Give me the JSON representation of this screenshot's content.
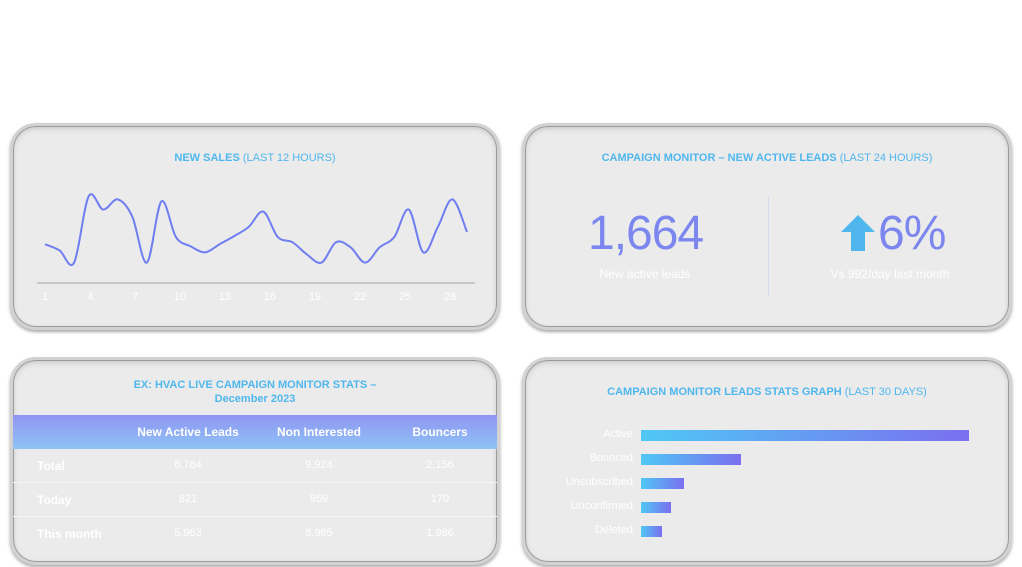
{
  "new_sales": {
    "title": "NEW SALES",
    "subtitle": "(LAST 12 HOURS)",
    "x_ticks": [
      "1",
      "4",
      "7",
      "10",
      "13",
      "16",
      "19",
      "22",
      "25",
      "28"
    ]
  },
  "campaign_leads": {
    "title": "CAMPAIGN MONITOR – NEW ACTIVE LEADS",
    "subtitle": "(LAST 24 HOURS)",
    "count": "1,664",
    "count_caption": "New active leads",
    "change": "6%",
    "change_caption": "Vs 992/day last month",
    "arrow_icon": "arrow-up-icon"
  },
  "hvac_stats": {
    "title_line1": "EX: HVAC LIVE CAMPAIGN MONITOR STATS –",
    "title_line2": "December 2023",
    "columns": [
      "New Active Leads",
      "Non Interested",
      "Bouncers"
    ],
    "rows": [
      {
        "label": "Total",
        "values": [
          "6,784",
          "9,924",
          "2,156"
        ]
      },
      {
        "label": "Today",
        "values": [
          "821",
          "959",
          "170"
        ]
      },
      {
        "label": "This month",
        "values": [
          "5,963",
          "8,965",
          "1,986"
        ]
      }
    ]
  },
  "leads_graph": {
    "title": "CAMPAIGN MONITOR LEADS STATS GRAPH",
    "subtitle": "(LAST 30 DAYS)"
  },
  "colors": {
    "accent": "#4fb7ee",
    "number": "#7c86ef",
    "line": "#6f7ef0"
  },
  "chart_data": [
    {
      "type": "line",
      "title": "NEW SALES (LAST 12 HOURS)",
      "x": [
        1,
        2,
        3,
        4,
        5,
        6,
        7,
        8,
        9,
        10,
        11,
        12,
        13,
        14,
        15,
        16,
        17,
        18,
        19,
        20,
        21,
        22,
        23,
        24,
        25,
        26,
        27,
        28,
        29,
        30
      ],
      "values": [
        38,
        32,
        20,
        85,
        72,
        82,
        65,
        20,
        80,
        45,
        36,
        30,
        38,
        46,
        55,
        70,
        45,
        40,
        28,
        20,
        40,
        35,
        20,
        35,
        45,
        72,
        30,
        55,
        82,
        50
      ],
      "ylim": [
        0,
        100
      ]
    },
    {
      "type": "bar",
      "orientation": "horizontal",
      "title": "CAMPAIGN MONITOR LEADS STATS GRAPH (LAST 30 DAYS)",
      "categories": [
        "Active",
        "Bounced",
        "Unsubscribed",
        "Unconfirmed",
        "Deleted"
      ],
      "values": [
        100,
        30.5,
        13,
        9,
        6.3
      ]
    }
  ]
}
